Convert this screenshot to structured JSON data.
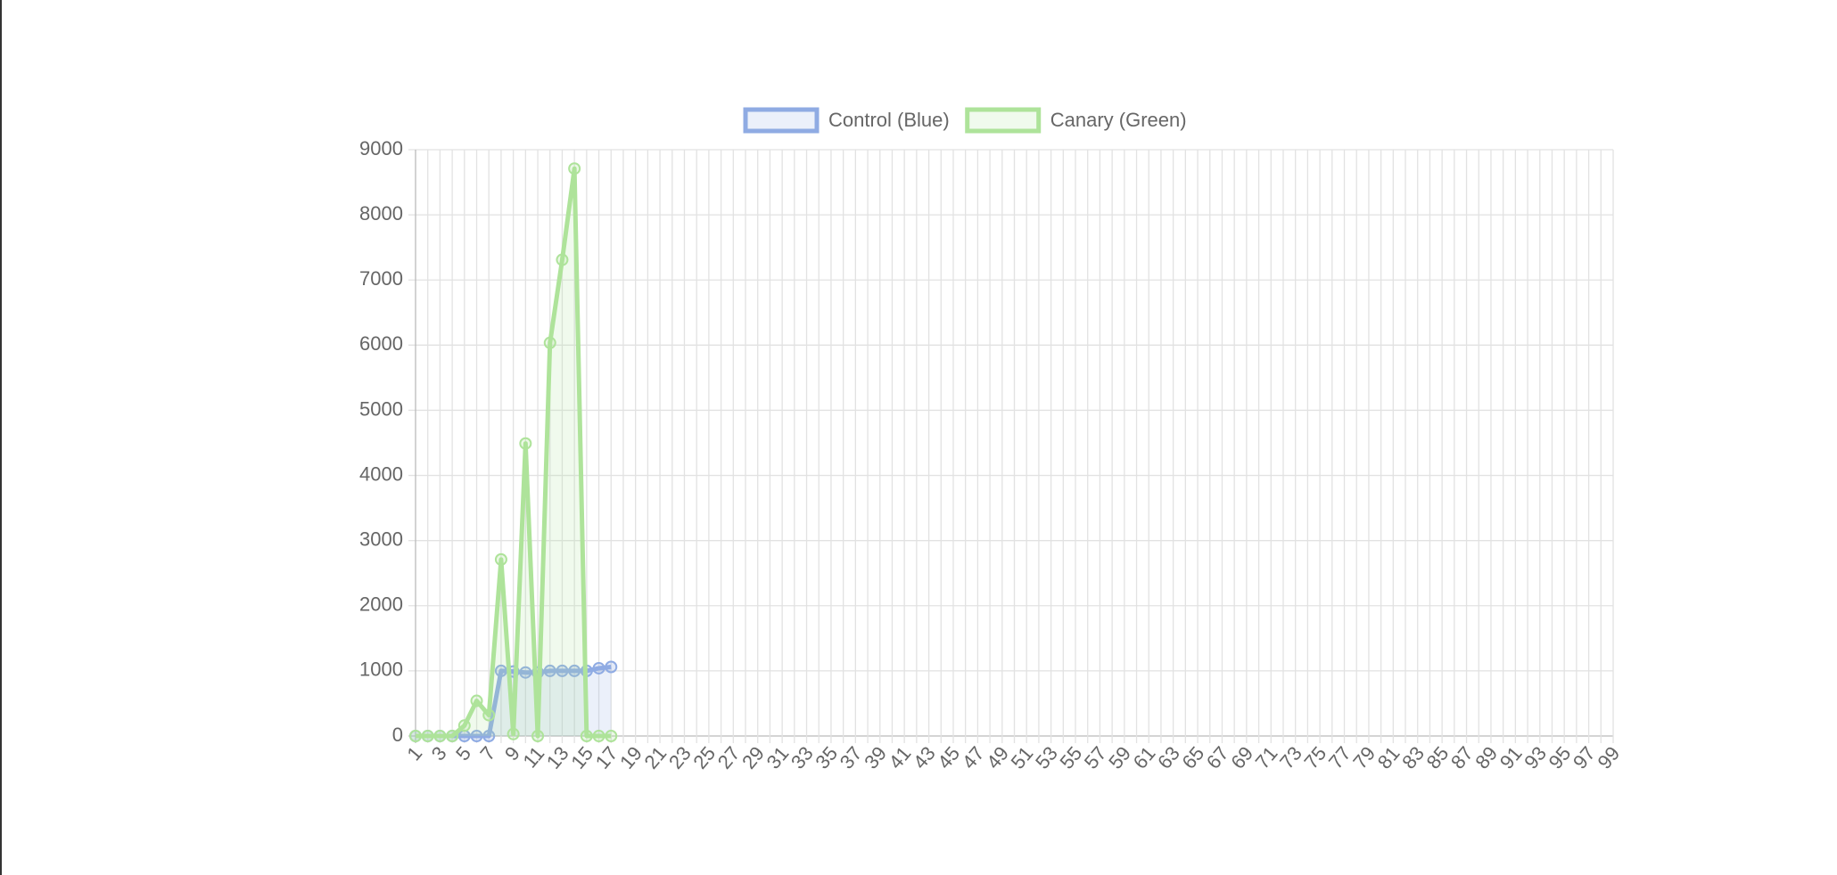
{
  "chart_data": {
    "type": "line",
    "categories": [
      1,
      null,
      3,
      null,
      5,
      null,
      7,
      null,
      9,
      null,
      11,
      null,
      13,
      null,
      15,
      null,
      17,
      null,
      19,
      null,
      21,
      null,
      23,
      null,
      25,
      null,
      27,
      null,
      29,
      null,
      31,
      null,
      33,
      null,
      35,
      null,
      37,
      null,
      39,
      null,
      41,
      null,
      43,
      null,
      45,
      null,
      47,
      null,
      49,
      null,
      51,
      null,
      53,
      null,
      55,
      null,
      57,
      null,
      59,
      null,
      61,
      null,
      63,
      null,
      65,
      null,
      67,
      null,
      69,
      null,
      71,
      null,
      73,
      null,
      75,
      null,
      77,
      null,
      79,
      null,
      81,
      null,
      83,
      null,
      85,
      null,
      87,
      null,
      89,
      null,
      91,
      null,
      93,
      null,
      95,
      null,
      97,
      null,
      99
    ],
    "series": [
      {
        "name": "Control (Blue)",
        "color": "#8fabe3",
        "values": [
          0,
          0,
          0,
          0,
          0,
          0,
          0,
          1000,
          990,
          975,
          975,
          1000,
          1000,
          1000,
          1000,
          1040,
          1060,
          null,
          null,
          null,
          null,
          null,
          null,
          null,
          null,
          null,
          null,
          null,
          null,
          null,
          null,
          null,
          null,
          null,
          null,
          null,
          null,
          null,
          null,
          null,
          null,
          null,
          null,
          null,
          null,
          null,
          null,
          null,
          null,
          null,
          null,
          null,
          null,
          null,
          null,
          null,
          null,
          null,
          null,
          null,
          null,
          null,
          null,
          null,
          null,
          null,
          null,
          null,
          null,
          null,
          null,
          null,
          null,
          null,
          null,
          null,
          null,
          null,
          null,
          null,
          null,
          null,
          null,
          null,
          null,
          null,
          null,
          null,
          null,
          null,
          null,
          null,
          null,
          null,
          null,
          null,
          null,
          null,
          null
        ]
      },
      {
        "name": "Canary (Green)",
        "color": "#aee39a",
        "values": [
          0,
          0,
          0,
          0,
          160,
          540,
          320,
          2710,
          30,
          4490,
          0,
          6035,
          7310,
          8710,
          0,
          0,
          0,
          null,
          null,
          null,
          null,
          null,
          null,
          null,
          null,
          null,
          null,
          null,
          null,
          null,
          null,
          null,
          null,
          null,
          null,
          null,
          null,
          null,
          null,
          null,
          null,
          null,
          null,
          null,
          null,
          null,
          null,
          null,
          null,
          null,
          null,
          null,
          null,
          null,
          null,
          null,
          null,
          null,
          null,
          null,
          null,
          null,
          null,
          null,
          null,
          null,
          null,
          null,
          null,
          null,
          null,
          null,
          null,
          null,
          null,
          null,
          null,
          null,
          null,
          null,
          null,
          null,
          null,
          null,
          null,
          null,
          null,
          null,
          null,
          null,
          null,
          null,
          null,
          null,
          null,
          null,
          null,
          null,
          null
        ]
      }
    ],
    "ylim": [
      0,
      9000
    ],
    "yticks": [
      0,
      1000,
      2000,
      3000,
      4000,
      5000,
      6000,
      7000,
      8000,
      9000
    ],
    "grid": true,
    "legend": "top"
  }
}
